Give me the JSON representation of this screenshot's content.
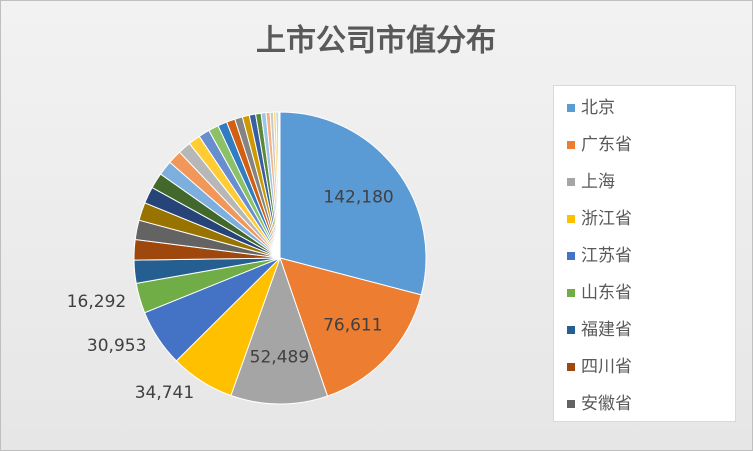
{
  "chart_data": {
    "type": "pie",
    "title": "上市公司市值分布",
    "categories": [
      "北京",
      "广东省",
      "上海",
      "浙江省",
      "江苏省",
      "山东省",
      "福建省",
      "四川省",
      "安徽省",
      null,
      null,
      null,
      null,
      null,
      null,
      null,
      null,
      null,
      null,
      null,
      null,
      null,
      null,
      null,
      null,
      null,
      null,
      null,
      null,
      null,
      null
    ],
    "values": [
      142180,
      76611,
      52489,
      34741,
      30953,
      16292,
      12500,
      11000,
      10500,
      9800,
      9000,
      8500,
      8000,
      7500,
      7000,
      6500,
      6000,
      5500,
      5000,
      4600,
      4200,
      3800,
      3400,
      3000,
      2600,
      2200,
      1800,
      1400,
      1000,
      700,
      400
    ],
    "value_labels": [
      "142,180",
      "76,611",
      "52,489",
      "34,741",
      "30,953",
      "16,292",
      null,
      null,
      null,
      null,
      null,
      null,
      null,
      null,
      null,
      null,
      null,
      null,
      null,
      null,
      null,
      null,
      null,
      null,
      null,
      null,
      null,
      null,
      null,
      null,
      null
    ],
    "colors": [
      "#5b9bd5",
      "#ed7d31",
      "#a5a5a5",
      "#ffc000",
      "#4472c4",
      "#70ad47",
      "#255e91",
      "#9e480e",
      "#636363",
      "#997300",
      "#264478",
      "#43682b",
      "#7cafdd",
      "#f1975a",
      "#b7b7b7",
      "#ffcd33",
      "#698ed0",
      "#8cc168",
      "#327dc2",
      "#d26012",
      "#848484",
      "#cc9a00",
      "#3a5fa0",
      "#5a8a39",
      "#9dc3e6",
      "#f4b183",
      "#c9c9c9",
      "#ffd966",
      "#8faadc",
      "#a9d18e",
      "#1f4e79"
    ],
    "legend": "right"
  }
}
